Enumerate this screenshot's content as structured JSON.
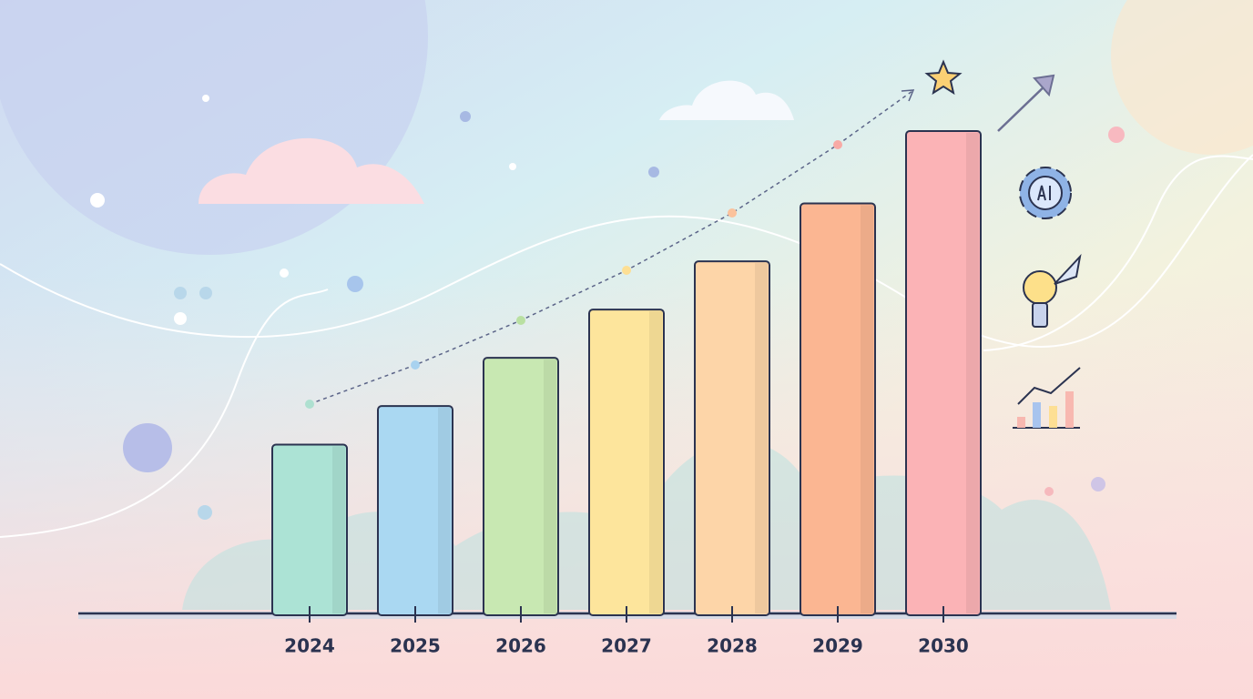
{
  "chart_data": {
    "type": "bar",
    "categories": [
      "2024",
      "2025",
      "2026",
      "2027",
      "2028",
      "2029",
      "2030"
    ],
    "values": [
      35,
      43,
      53,
      63,
      73,
      85,
      100
    ],
    "colors": [
      "#ace3d5",
      "#aad8f2",
      "#c8e8b2",
      "#fde59c",
      "#fdd5a8",
      "#fbb692",
      "#fbb3b6"
    ]
  }
}
